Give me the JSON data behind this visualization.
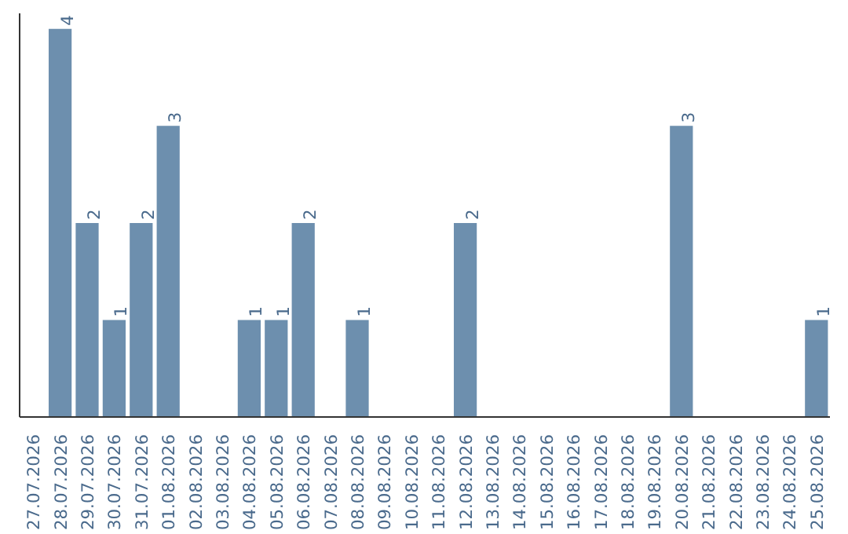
{
  "chart_data": {
    "type": "bar",
    "categories": [
      "27.07.2026",
      "28.07.2026",
      "29.07.2026",
      "30.07.2026",
      "31.07.2026",
      "01.08.2026",
      "02.08.2026",
      "03.08.2026",
      "04.08.2026",
      "05.08.2026",
      "06.08.2026",
      "07.08.2026",
      "08.08.2026",
      "09.08.2026",
      "10.08.2026",
      "11.08.2026",
      "12.08.2026",
      "13.08.2026",
      "14.08.2026",
      "15.08.2026",
      "16.08.2026",
      "17.08.2026",
      "18.08.2026",
      "19.08.2026",
      "20.08.2026",
      "21.08.2026",
      "22.08.2026",
      "23.08.2026",
      "24.08.2026",
      "25.08.2026"
    ],
    "values": [
      0,
      4,
      2,
      1,
      2,
      3,
      0,
      0,
      1,
      1,
      2,
      0,
      1,
      0,
      0,
      0,
      2,
      0,
      0,
      0,
      0,
      0,
      0,
      0,
      3,
      0,
      0,
      0,
      0,
      1
    ],
    "value_labels": [
      null,
      "4",
      "2",
      "1",
      "2",
      "3",
      null,
      null,
      "1",
      "1",
      "2",
      null,
      "1",
      null,
      null,
      null,
      "2",
      null,
      null,
      null,
      null,
      null,
      null,
      null,
      "3",
      null,
      null,
      null,
      null,
      "1"
    ],
    "color": "#6d8fae",
    "grid": false,
    "tick_labels": "x"
  }
}
